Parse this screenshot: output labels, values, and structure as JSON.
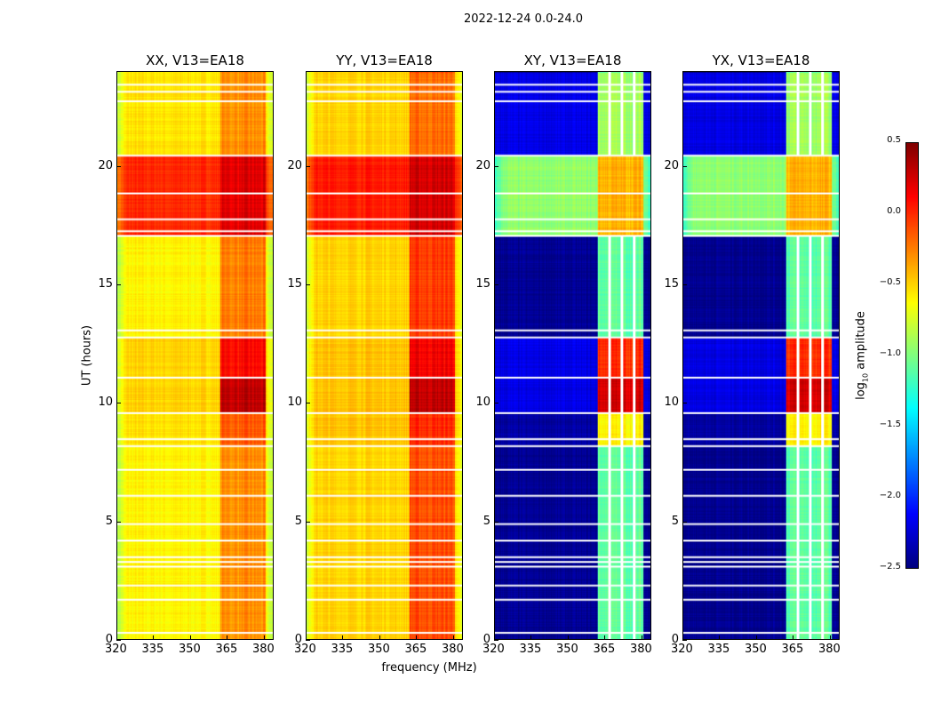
{
  "chart_data": {
    "type": "heatmap",
    "title": "2022-12-24 0.0-24.0",
    "xlabel": "frequency (MHz)",
    "ylabel": "UT (hours)",
    "xlim": [
      320,
      384
    ],
    "ylim": [
      0,
      24
    ],
    "xticks": [
      "320",
      "335",
      "350",
      "365",
      "380"
    ],
    "yticks": [
      "0",
      "5",
      "10",
      "15",
      "20"
    ],
    "colormap": "jet",
    "colorbar": {
      "label_main": "log",
      "label_sub": "10",
      "label_rest": " amplitude",
      "range": [
        -2.5,
        0.5
      ],
      "ticks": [
        "0.5",
        "0.0",
        "−0.5",
        "−1.0",
        "−1.5",
        "−2.0",
        "−2.5"
      ]
    },
    "rfi_band_mhz": [
      362,
      381
    ],
    "flagged_ut": [
      0.3,
      1.7,
      2.3,
      3.1,
      3.3,
      3.5,
      4.2,
      4.9,
      6.1,
      7.2,
      8.2,
      8.5,
      9.6,
      11.1,
      12.8,
      13.1,
      17.1,
      17.3,
      17.8,
      18.9,
      20.5,
      22.8,
      23.2,
      23.5
    ],
    "panels": [
      {
        "title": "XX, V13=EA18",
        "segments": [
          {
            "ut": [
              0,
              8.2
            ],
            "base": -0.6,
            "band": -0.3
          },
          {
            "ut": [
              8.2,
              9.6
            ],
            "base": -0.55,
            "band": -0.15
          },
          {
            "ut": [
              9.6,
              11.1
            ],
            "base": -0.5,
            "band": 0.3
          },
          {
            "ut": [
              11.1,
              12.8
            ],
            "base": -0.5,
            "band": 0.1
          },
          {
            "ut": [
              12.8,
              17.1
            ],
            "base": -0.6,
            "band": -0.25
          },
          {
            "ut": [
              17.1,
              20.5
            ],
            "base": 0.0,
            "band": 0.2
          },
          {
            "ut": [
              20.5,
              24
            ],
            "base": -0.55,
            "band": -0.3
          }
        ]
      },
      {
        "title": "YY, V13=EA18",
        "segments": [
          {
            "ut": [
              0,
              8.2
            ],
            "base": -0.5,
            "band": -0.1
          },
          {
            "ut": [
              8.2,
              9.6
            ],
            "base": -0.45,
            "band": 0.0
          },
          {
            "ut": [
              9.6,
              11.1
            ],
            "base": -0.45,
            "band": 0.3
          },
          {
            "ut": [
              11.1,
              12.8
            ],
            "base": -0.45,
            "band": 0.15
          },
          {
            "ut": [
              12.8,
              17.1
            ],
            "base": -0.5,
            "band": -0.05
          },
          {
            "ut": [
              17.1,
              20.5
            ],
            "base": 0.05,
            "band": 0.25
          },
          {
            "ut": [
              20.5,
              24
            ],
            "base": -0.5,
            "band": -0.2
          }
        ]
      },
      {
        "title": "XY, V13=EA18",
        "segments": [
          {
            "ut": [
              0,
              8.2
            ],
            "base": -2.45,
            "band": -1.1
          },
          {
            "ut": [
              8.2,
              9.6
            ],
            "base": -2.4,
            "band": -0.6
          },
          {
            "ut": [
              9.6,
              11.1
            ],
            "base": -2.2,
            "band": 0.25
          },
          {
            "ut": [
              11.1,
              12.8
            ],
            "base": -2.2,
            "band": 0.0
          },
          {
            "ut": [
              12.8,
              17.1
            ],
            "base": -2.45,
            "band": -1.1
          },
          {
            "ut": [
              17.1,
              20.5
            ],
            "base": -0.95,
            "band": -0.4
          },
          {
            "ut": [
              20.5,
              24
            ],
            "base": -2.2,
            "band": -0.9
          }
        ]
      },
      {
        "title": "YX, V13=EA18",
        "segments": [
          {
            "ut": [
              0,
              8.2
            ],
            "base": -2.45,
            "band": -1.1
          },
          {
            "ut": [
              8.2,
              9.6
            ],
            "base": -2.4,
            "band": -0.6
          },
          {
            "ut": [
              9.6,
              11.1
            ],
            "base": -2.2,
            "band": 0.25
          },
          {
            "ut": [
              11.1,
              12.8
            ],
            "base": -2.2,
            "band": 0.0
          },
          {
            "ut": [
              12.8,
              17.1
            ],
            "base": -2.45,
            "band": -1.1
          },
          {
            "ut": [
              17.1,
              20.5
            ],
            "base": -0.95,
            "band": -0.4
          },
          {
            "ut": [
              20.5,
              24
            ],
            "base": -2.2,
            "band": -0.9
          }
        ]
      }
    ]
  }
}
